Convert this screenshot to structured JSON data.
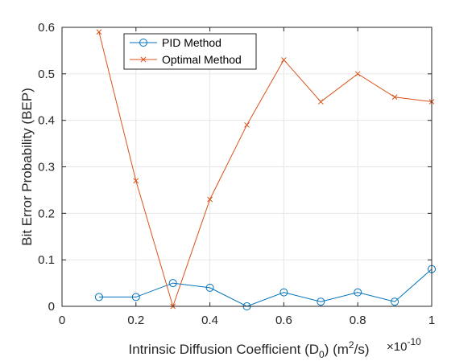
{
  "chart_data": {
    "type": "line",
    "title": "",
    "xlabel_parts": [
      "Intrinsic Diffusion Coefficient (D",
      "0",
      ") (m",
      "2",
      "/s)"
    ],
    "ylabel": "Bit Error Probability (BEP)",
    "x_exponent": {
      "base": "×10",
      "power": "-10"
    },
    "xlim": [
      0,
      1
    ],
    "ylim": [
      0,
      0.6
    ],
    "xticks": [
      0,
      0.2,
      0.4,
      0.6,
      0.8,
      1
    ],
    "xtick_labels": [
      "0",
      "0.2",
      "0.4",
      "0.6",
      "0.8",
      "1"
    ],
    "yticks": [
      0,
      0.1,
      0.2,
      0.3,
      0.4,
      0.5,
      0.6
    ],
    "ytick_labels": [
      "0",
      "0.1",
      "0.2",
      "0.3",
      "0.4",
      "0.5",
      "0.6"
    ],
    "grid": true,
    "legend_position": "top-left",
    "x": [
      0.1,
      0.2,
      0.3,
      0.4,
      0.5,
      0.6,
      0.7,
      0.8,
      0.9,
      1.0
    ],
    "series": [
      {
        "name": "PID Method",
        "marker": "circle",
        "color": "#0072BD",
        "values": [
          0.02,
          0.02,
          0.05,
          0.04,
          0.0,
          0.03,
          0.01,
          0.03,
          0.01,
          0.08
        ]
      },
      {
        "name": "Optimal Method",
        "marker": "x",
        "color": "#D95319",
        "values": [
          0.59,
          0.27,
          0.0,
          0.23,
          0.39,
          0.53,
          0.44,
          0.5,
          0.45,
          0.44
        ]
      }
    ]
  }
}
